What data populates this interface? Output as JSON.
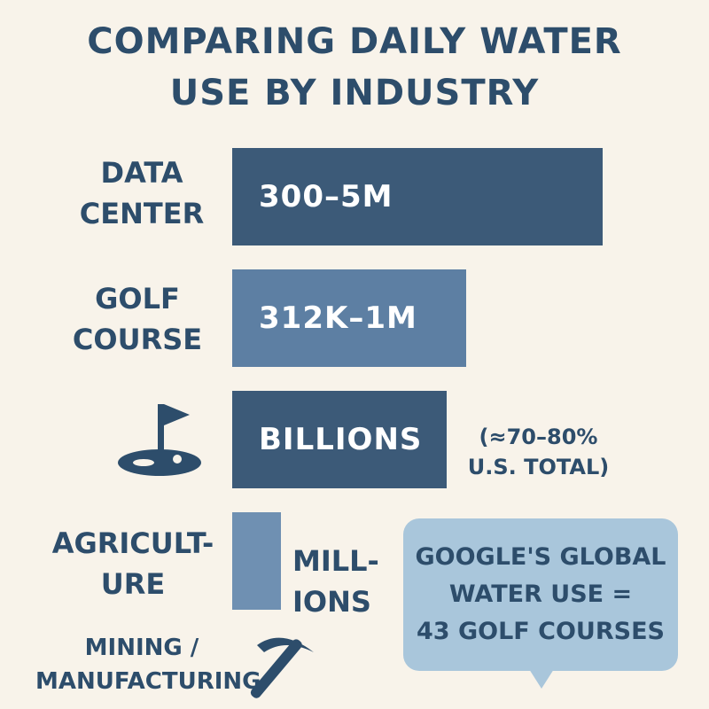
{
  "title": [
    "COMPARING DAILY WATER",
    "USE BY INDUSTRY"
  ],
  "chart_data": {
    "type": "bar",
    "orientation": "horizontal",
    "title": "COMPARING DAILY WATER USE BY INDUSTRY",
    "categories": [
      "DATA CENTER",
      "GOLF COURSE",
      "AGRICULTURE",
      "MINING / MANUFACTURING"
    ],
    "value_labels": [
      "300–5M",
      "312K–1M",
      "BILLIONS",
      "MILLIONS"
    ],
    "relative_length": [
      0.76,
      0.48,
      0.44,
      0.1
    ],
    "colors": [
      "#3c5a78",
      "#5d7fa3",
      "#3c5a78",
      "#6f90b2"
    ],
    "annotations": [
      "(≈70–80% U.S. TOTAL)",
      "GOOGLE'S GLOBAL WATER USE = 43 GOLF COURSES"
    ]
  },
  "labels": {
    "data_center": [
      "DATA",
      "CENTER"
    ],
    "golf_course": [
      "GOLF",
      "COURSE"
    ],
    "agriculture": [
      "AGRICULT-",
      "URE"
    ],
    "mining": [
      "MINING /",
      "MANUFACTURING"
    ]
  },
  "bars": {
    "data_center": "300–5M",
    "golf_course": "312K–1M",
    "agriculture": "BILLIONS",
    "mining_value": [
      "MILL-",
      "IONS"
    ]
  },
  "side_note": [
    "(≈70–80%",
    "U.S. TOTAL)"
  ],
  "callout": [
    "GOOGLE'S GLOBAL",
    "WATER USE =",
    "43 GOLF COURSES"
  ],
  "icons": [
    "golf-flag-icon",
    "pickaxe-icon"
  ]
}
